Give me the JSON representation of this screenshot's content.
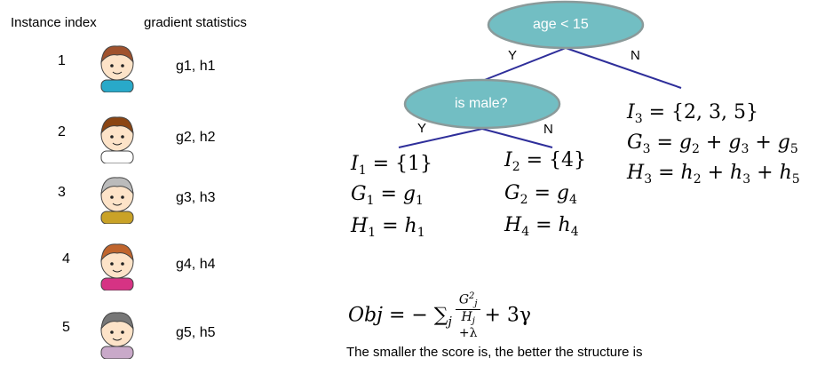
{
  "headers": {
    "index": "Instance index",
    "stats": "gradient statistics"
  },
  "instances": [
    {
      "index": "1",
      "stats": "g1, h1",
      "avatar": "boy",
      "shirt": "#29a9c9",
      "hair": "#a0522d"
    },
    {
      "index": "2",
      "stats": "g2, h2",
      "avatar": "girl-braids",
      "shirt": "#ffffff",
      "hair": "#8b4513"
    },
    {
      "index": "3",
      "stats": "g3, h3",
      "avatar": "grandpa",
      "shirt": "#c9a227",
      "hair": "#bbbbbb"
    },
    {
      "index": "4",
      "stats": "g4, h4",
      "avatar": "woman-ponytail",
      "shirt": "#d63384",
      "hair": "#c0652d"
    },
    {
      "index": "5",
      "stats": "g5, h5",
      "avatar": "grandma",
      "shirt": "#c9a9c9",
      "hair": "#777777"
    }
  ],
  "tree": {
    "root": "age < 15",
    "child": "is male?",
    "yes": "Y",
    "no": "N",
    "node_color": "#72bec3",
    "edge_color": "#2e2e9a"
  },
  "leaves": {
    "l1": {
      "I": "{1}",
      "G": "g",
      "Gsub": "1",
      "H": "h",
      "Hsub": "1",
      "Isub": "1",
      "GLsub": "1",
      "HLsub": "1"
    },
    "l2": {
      "I": "{4}",
      "Isub": "2",
      "GLsub": "2",
      "G": "g",
      "Gsub": "4",
      "HLsub": "4",
      "H": "h",
      "Hsub": "4"
    },
    "l3": {
      "I": "{2, 3, 5}",
      "Isub": "3",
      "GLsub": "3",
      "HLsub": "3"
    }
  },
  "objective": {
    "lhs": "Obj",
    "rest": "+ 3γ",
    "num": "G",
    "den": "H",
    "lambda": "+λ"
  },
  "caption": "The smaller the score is, the better the structure is"
}
